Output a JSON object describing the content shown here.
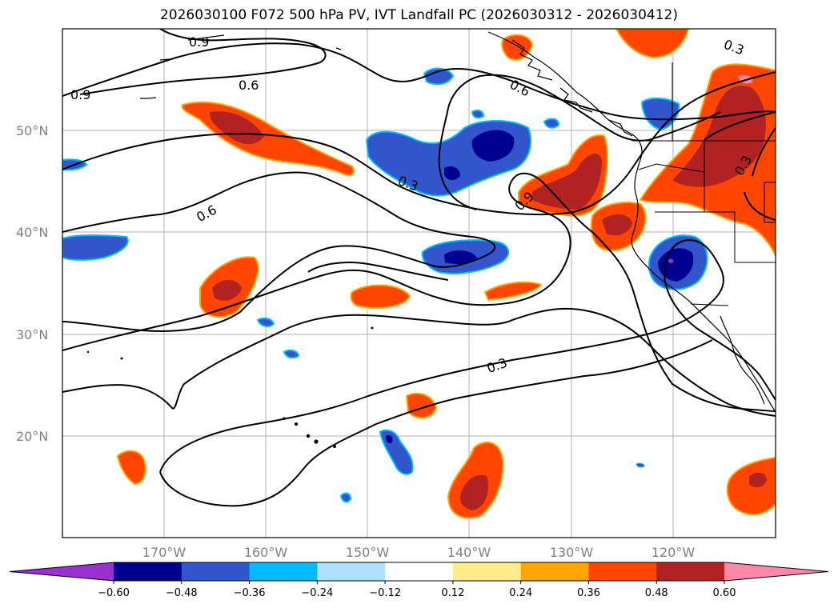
{
  "title": "2026030100 F072 500 hPa PV, IVT Landfall PC (2026030312 - 2026030412)",
  "lat_labels": [
    "50°N",
    "40°N",
    "30°N",
    "20°N"
  ],
  "lon_labels": [
    "170°W",
    "160°W",
    "150°W",
    "140°W",
    "130°W",
    "120°W"
  ],
  "contour_labels": [
    "0.9",
    "0.9",
    "0.6",
    "0.6",
    "0.6",
    "0.3",
    "0.3",
    "0.3",
    "0.9",
    "0.3"
  ],
  "colorbar": {
    "colors": [
      "#9b30d0",
      "#000090",
      "#3355cc",
      "#00bbff",
      "#aee0ff",
      "#ffffff",
      "#ffeb8c",
      "#ffa500",
      "#ff4500",
      "#b22222",
      "#ff88aa"
    ],
    "tick_labels": [
      "−0.60",
      "−0.48",
      "−0.36",
      "−0.24",
      "−0.12",
      "0.12",
      "0.24",
      "0.36",
      "0.48",
      "0.60"
    ]
  }
}
